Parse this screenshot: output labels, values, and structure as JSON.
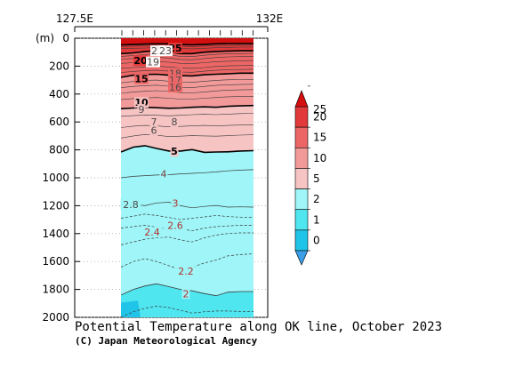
{
  "chart_data": {
    "type": "contour-section",
    "title": "Potential Temperature along OK line, October 2023",
    "credit": "(C) Japan Meteorological Agency",
    "x_top_labels": [
      "127.5E",
      "132E"
    ],
    "y_unit_label": "(m)",
    "y_ticks": [
      0,
      200,
      400,
      600,
      800,
      1000,
      1200,
      1400,
      1600,
      1800,
      2000
    ],
    "ylim": [
      0,
      2000
    ],
    "colorbar": {
      "levels": [
        0,
        1,
        2,
        5,
        10,
        15,
        20,
        25
      ],
      "labels": [
        "0",
        "1",
        "2",
        "5",
        "10",
        "15",
        "20",
        "25"
      ],
      "colors": [
        "#3a9ee8",
        "#1fc4e8",
        "#4fe6f0",
        "#9ff5f7",
        "#f7c4c4",
        "#f29a9a",
        "#ec6666",
        "#e23a3a",
        "#d40f0f"
      ]
    },
    "contour_labels": [
      {
        "text": "25",
        "depth": 70
      },
      {
        "text": "22",
        "depth": 90
      },
      {
        "text": "23",
        "depth": 90
      },
      {
        "text": "20",
        "depth": 160
      },
      {
        "text": "19",
        "depth": 170
      },
      {
        "text": "18",
        "depth": 250
      },
      {
        "text": "17",
        "depth": 300
      },
      {
        "text": "16",
        "depth": 350
      },
      {
        "text": "15",
        "depth": 290
      },
      {
        "text": "10",
        "depth": 460
      },
      {
        "text": "9",
        "depth": 510
      },
      {
        "text": "8",
        "depth": 600
      },
      {
        "text": "7",
        "depth": 600
      },
      {
        "text": "6",
        "depth": 660
      },
      {
        "text": "5",
        "depth": 810
      },
      {
        "text": "4",
        "depth": 970
      },
      {
        "text": "3",
        "depth": 1180
      },
      {
        "text": "2.8",
        "depth": 1190
      },
      {
        "text": "2.6",
        "depth": 1340
      },
      {
        "text": "2.4",
        "depth": 1390
      },
      {
        "text": "2.2",
        "depth": 1670
      },
      {
        "text": "2",
        "depth": 1830
      }
    ]
  }
}
